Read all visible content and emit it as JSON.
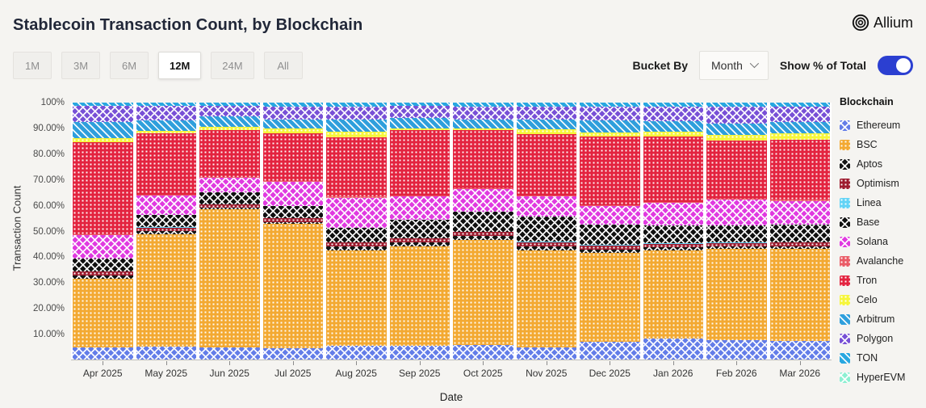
{
  "header": {
    "logo_text": "Allium"
  },
  "toolbar": {
    "ranges": [
      "1M",
      "3M",
      "6M",
      "12M",
      "24M",
      "All"
    ],
    "active_range": "12M",
    "bucket_by_label": "Bucket By",
    "bucket_value": "Month",
    "show_pct_label": "Show % of Total",
    "toggle_on": true,
    "accent_color": "#2b3fd1"
  },
  "chart_data": {
    "type": "bar",
    "stacked": true,
    "percent_of_total": true,
    "title": "Stablecoin Transaction Count, by Blockchain",
    "xlabel": "Date",
    "ylabel": "Transaction Count",
    "legend_title": "Blockchain",
    "ylim": [
      0,
      100
    ],
    "grid": false,
    "legend_position": "right",
    "ytick_labels": [
      "100%",
      "90.00%",
      "80.00%",
      "70.00%",
      "60.00%",
      "50.00%",
      "40.00%",
      "30.00%",
      "20.00%",
      "10.00%"
    ],
    "categories": [
      "Apr 2025",
      "May 2025",
      "Jun 2025",
      "Jul 2025",
      "Aug 2025",
      "Sep 2025",
      "Oct 2025",
      "Nov 2025",
      "Dec 2025",
      "Jan 2026",
      "Feb 2026",
      "Mar 2026"
    ],
    "series": [
      {
        "name": "Ethereum",
        "color": "#637de8",
        "pattern": "cross",
        "values": [
          4.8,
          5.0,
          4.8,
          4.3,
          5.3,
          5.3,
          5.8,
          4.6,
          6.9,
          8.2,
          7.4,
          7.1
        ]
      },
      {
        "name": "BSC",
        "color": "#f3a932",
        "pattern": "dot",
        "values": [
          26.5,
          43.8,
          53.6,
          48.4,
          37.3,
          38.8,
          40.6,
          37.9,
          34.6,
          34.4,
          35.7,
          36.0
        ]
      },
      {
        "name": "Aptos",
        "color": "#141414",
        "pattern": "cross",
        "values": [
          1.5,
          1.2,
          0.7,
          0.8,
          1.5,
          1.4,
          1.6,
          1.6,
          1.4,
          1.0,
          1.0,
          1.0
        ]
      },
      {
        "name": "Optimism",
        "color": "#9e1b2f",
        "pattern": "dot",
        "values": [
          1.5,
          1.4,
          1.2,
          1.4,
          1.4,
          1.6,
          1.6,
          1.6,
          1.6,
          1.5,
          1.3,
          1.4
        ]
      },
      {
        "name": "Linea",
        "color": "#62d3f6",
        "pattern": "dot",
        "values": [
          0.1,
          0.1,
          0.1,
          0.1,
          0.1,
          0.1,
          0.1,
          0.1,
          0.1,
          0.1,
          0.1,
          0.1
        ]
      },
      {
        "name": "Base",
        "color": "#101010",
        "pattern": "cross",
        "values": [
          5.0,
          4.9,
          4.7,
          4.9,
          5.7,
          7.3,
          7.8,
          9.9,
          7.8,
          7.1,
          6.8,
          7.0
        ]
      },
      {
        "name": "Solana",
        "color": "#e03ae0",
        "pattern": "cross",
        "values": [
          9.0,
          7.3,
          5.7,
          9.4,
          11.7,
          9.1,
          8.9,
          7.8,
          7.3,
          8.8,
          9.9,
          9.2
        ]
      },
      {
        "name": "Avalanche",
        "color": "#ea5c67",
        "pattern": "dot",
        "values": [
          0.4,
          0.4,
          0.3,
          0.3,
          0.4,
          0.4,
          0.4,
          0.4,
          0.4,
          0.4,
          0.4,
          0.4
        ]
      },
      {
        "name": "Tron",
        "color": "#e3233f",
        "pattern": "dot",
        "values": [
          35.8,
          24.0,
          18.3,
          18.5,
          23.2,
          25.3,
          22.4,
          24.0,
          26.6,
          25.3,
          22.6,
          23.4
        ]
      },
      {
        "name": "Celo",
        "color": "#f6f63a",
        "pattern": "dot",
        "values": [
          1.7,
          1.0,
          1.2,
          1.8,
          2.1,
          0.8,
          0.8,
          1.6,
          1.6,
          1.9,
          2.1,
          2.6
        ]
      },
      {
        "name": "Arbitrum",
        "color": "#2f9fdc",
        "pattern": "diag",
        "values": [
          6.3,
          4.0,
          4.2,
          3.5,
          4.7,
          3.9,
          3.3,
          3.9,
          4.7,
          4.2,
          4.5,
          4.2
        ]
      },
      {
        "name": "Polygon",
        "color": "#7850d6",
        "pattern": "cross",
        "values": [
          6.2,
          5.6,
          4.0,
          5.2,
          5.2,
          4.7,
          5.3,
          5.2,
          5.6,
          5.7,
          6.8,
          6.2
        ]
      },
      {
        "name": "TON",
        "color": "#28a7e0",
        "pattern": "diag",
        "values": [
          1.1,
          1.2,
          1.1,
          1.3,
          1.3,
          1.2,
          1.3,
          1.3,
          1.3,
          1.3,
          1.3,
          1.3
        ]
      },
      {
        "name": "HyperEVM",
        "color": "#8df0d2",
        "pattern": "cross",
        "values": [
          0.1,
          0.1,
          0.1,
          0.1,
          0.1,
          0.1,
          0.1,
          0.1,
          0.1,
          0.1,
          0.1,
          0.1
        ]
      }
    ]
  }
}
